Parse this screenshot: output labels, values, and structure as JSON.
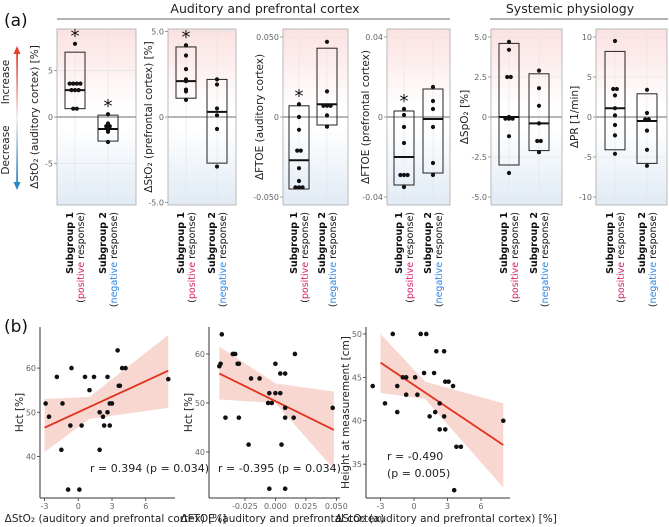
{
  "figure": {
    "panel_a_label": "(a)",
    "panel_b_label": "(b)",
    "group_headers": [
      "Auditory and prefrontal cortex",
      "Systemic physiology"
    ],
    "arrow_labels": {
      "increase": "Increase",
      "decrease": "Decrease"
    },
    "colors": {
      "positive": "#d6246e",
      "negative": "#2f86e8",
      "fit_line": "#e2321e",
      "ci_band": "#f6c9c1",
      "increase": "#e3402f",
      "decrease": "#2b86c5"
    }
  },
  "chart_data": [
    {
      "type": "box",
      "ylabel": "ΔStO₂ (auditory cortex) [%]",
      "ylim": [
        -9.5,
        9.5
      ],
      "yticks": [
        5,
        0,
        -5
      ],
      "ytick_labels": [
        "5",
        "0",
        "-5"
      ],
      "groups": [
        {
          "category": "Subgroup 1",
          "prefix": "(",
          "response_word": "positive",
          "response_rest": " response)",
          "box": [
            0.9,
            7.0
          ],
          "median": 2.9,
          "points": [
            7.9,
            3.6,
            3.6,
            3.6,
            3.6,
            2.9,
            2.9,
            2.9,
            0.9,
            0.9
          ],
          "significant": true,
          "star": "*"
        },
        {
          "category": "Subgroup 2",
          "prefix": "(",
          "response_word": "negative",
          "response_rest": " response)",
          "box": [
            -2.6,
            0.2
          ],
          "median": -1.3,
          "points": [
            0.3,
            -0.7,
            -1.0,
            -1.0,
            -1.3,
            -1.4,
            -1.6,
            -2.7
          ],
          "significant": true,
          "star": "*"
        }
      ]
    },
    {
      "type": "box",
      "ylabel": "ΔStO₂ (prefrontal cortex) [%]",
      "ylim": [
        -5.15,
        5.15
      ],
      "yticks": [
        5,
        0,
        -5
      ],
      "ytick_labels": [
        "5.0",
        "0",
        "-5.0"
      ],
      "groups": [
        {
          "category": "Subgroup 1",
          "prefix": "(",
          "response_word": "positive",
          "response_rest": " response)",
          "box": [
            1.1,
            4.1
          ],
          "median": 2.1,
          "points": [
            4.2,
            3.6,
            2.8,
            2.2,
            2.1,
            1.6,
            1.5,
            1.0
          ],
          "significant": true,
          "star": "*"
        },
        {
          "category": "Subgroup 2",
          "prefix": "(",
          "response_word": "negative",
          "response_rest": " response)",
          "box": [
            -2.7,
            2.2
          ],
          "median": 0.3,
          "points": [
            2.2,
            1.9,
            0.5,
            0.1,
            -0.7,
            -2.9
          ],
          "significant": false
        }
      ]
    },
    {
      "type": "box",
      "ylabel": "ΔFTOE (auditory cortex)",
      "ylim": [
        -0.055,
        0.055
      ],
      "yticks": [
        0.05,
        0,
        -0.05
      ],
      "ytick_labels": [
        "0.050",
        "0",
        "-0.050"
      ],
      "groups": [
        {
          "category": "Subgroup 1",
          "prefix": "(",
          "response_word": "positive",
          "response_rest": " response)",
          "box": [
            -0.045,
            0.007
          ],
          "median": -0.027,
          "points": [
            0.008,
            0.0,
            -0.008,
            -0.021,
            -0.021,
            -0.032,
            -0.04,
            -0.044,
            -0.044,
            -0.044
          ],
          "significant": true,
          "star": "*"
        },
        {
          "category": "Subgroup 2",
          "prefix": "(",
          "response_word": "negative",
          "response_rest": " response)",
          "box": [
            -0.005,
            0.043
          ],
          "median": 0.008,
          "points": [
            0.047,
            0.016,
            0.007,
            0.007,
            0.007,
            0.001,
            -0.006
          ],
          "significant": false
        }
      ]
    },
    {
      "type": "box",
      "ylabel": "ΔFTOE (prefrontal cortex)",
      "ylim": [
        -0.044,
        0.044
      ],
      "yticks": [
        0.04,
        0,
        -0.04
      ],
      "ytick_labels": [
        "0.04",
        "0",
        "-0.04"
      ],
      "groups": [
        {
          "category": "Subgroup 1",
          "prefix": "(",
          "response_word": "positive",
          "response_rest": " response)",
          "box": [
            -0.034,
            0.003
          ],
          "median": -0.02,
          "points": [
            0.004,
            0.001,
            -0.005,
            -0.013,
            -0.029,
            -0.029,
            -0.029,
            -0.035
          ],
          "significant": true,
          "star": "*"
        },
        {
          "category": "Subgroup 2",
          "prefix": "(",
          "response_word": "negative",
          "response_rest": " response)",
          "box": [
            -0.028,
            0.014
          ],
          "median": -0.001,
          "points": [
            0.015,
            0.008,
            0.004,
            -0.005,
            -0.023,
            -0.029
          ],
          "significant": false
        }
      ]
    },
    {
      "type": "box",
      "ylabel": "ΔSpO₂ [%]",
      "ylim": [
        -5.5,
        5.5
      ],
      "yticks": [
        5,
        2.5,
        0,
        -2.5,
        -5
      ],
      "ytick_labels": [
        "5.0",
        "2.5",
        "0",
        "-2.5",
        "-5.0"
      ],
      "groups": [
        {
          "category": "Subgroup 1",
          "prefix": "(",
          "response_word": "positive",
          "response_rest": " response)",
          "box": [
            -3.0,
            4.6
          ],
          "median": 0.0,
          "points": [
            4.7,
            4.2,
            2.5,
            2.5,
            0.0,
            -0.1,
            -0.1,
            -0.1,
            -1.2,
            -3.5
          ],
          "significant": false
        },
        {
          "category": "Subgroup 2",
          "prefix": "(",
          "response_word": "negative",
          "response_rest": " response)",
          "box": [
            -2.1,
            2.7
          ],
          "median": -0.4,
          "points": [
            2.9,
            1.8,
            0.7,
            -0.4,
            -1.5,
            -1.5,
            -2.2
          ],
          "significant": false
        }
      ]
    },
    {
      "type": "box",
      "ylabel": "ΔPR [1/min]",
      "ylim": [
        -11,
        11
      ],
      "yticks": [
        10,
        5,
        0,
        -5,
        -10
      ],
      "ytick_labels": [
        "10",
        "5",
        "0",
        "-5",
        "-10"
      ],
      "groups": [
        {
          "category": "Subgroup 1",
          "prefix": "(",
          "response_word": "positive",
          "response_rest": " response)",
          "box": [
            -4.1,
            8.2
          ],
          "median": 1.1,
          "points": [
            9.5,
            3.5,
            3.5,
            2.7,
            1.1,
            0.2,
            -1.0,
            -2.3,
            -4.6
          ],
          "significant": false
        },
        {
          "category": "Subgroup 2",
          "prefix": "(",
          "response_word": "negative",
          "response_rest": " response)",
          "box": [
            -5.8,
            2.9
          ],
          "median": -0.5,
          "points": [
            3.4,
            0.5,
            -0.3,
            -0.3,
            -1.7,
            -4.1,
            -6.1
          ],
          "significant": false
        }
      ]
    },
    {
      "type": "scatter",
      "xlabel": "ΔStO₂ (auditory and prefrontal cortex) [%]",
      "ylabel": "Hct [%]",
      "xlim": [
        -3.4,
        8.6
      ],
      "ylim": [
        30.6,
        69.3
      ],
      "xticks": [
        -3,
        0,
        3,
        6
      ],
      "xtick_labels": [
        "-3",
        "0",
        "3",
        "6"
      ],
      "yticks": [
        40,
        50,
        60
      ],
      "ytick_labels": [
        "40",
        "50",
        "60"
      ],
      "points": [
        [
          -2.9,
          52
        ],
        [
          -2.6,
          49
        ],
        [
          -1.9,
          58
        ],
        [
          -1.4,
          52
        ],
        [
          -1.5,
          41.5
        ],
        [
          -0.9,
          32.5
        ],
        [
          -0.7,
          47
        ],
        [
          -0.6,
          60
        ],
        [
          0.1,
          32.5
        ],
        [
          0.3,
          47
        ],
        [
          0.6,
          58
        ],
        [
          1.0,
          55
        ],
        [
          1.4,
          58
        ],
        [
          1.9,
          50
        ],
        [
          1.9,
          41.5
        ],
        [
          2.2,
          49
        ],
        [
          2.3,
          47
        ],
        [
          2.6,
          50
        ],
        [
          2.6,
          58
        ],
        [
          2.8,
          52
        ],
        [
          2.8,
          47
        ],
        [
          3.0,
          52
        ],
        [
          3.5,
          64
        ],
        [
          3.6,
          56
        ],
        [
          3.7,
          56
        ],
        [
          3.9,
          60
        ],
        [
          4.2,
          60
        ],
        [
          8.0,
          57.5
        ]
      ],
      "fit": [
        [
          -3,
          46.5
        ],
        [
          8,
          59.4
        ]
      ],
      "ci_upper": [
        [
          -3,
          53
        ],
        [
          1,
          53.5
        ],
        [
          8,
          67.5
        ]
      ],
      "ci_lower": [
        [
          -3,
          41
        ],
        [
          1,
          48.5
        ],
        [
          8,
          51
        ]
      ],
      "annotation": [
        "r = 0.394 (p = 0.034)"
      ]
    },
    {
      "type": "scatter",
      "xlabel": "ΔFTOE (auditory and prefrontal cortex)",
      "ylabel": "Hct [%]",
      "xlim": [
        -0.0545,
        0.053
      ],
      "ylim": [
        30.6,
        65.5
      ],
      "xticks": [
        -0.025,
        0,
        0.025,
        0.05
      ],
      "xtick_labels": [
        "-0.025",
        "0.000",
        "0.025",
        "0.050"
      ],
      "yticks": [
        40,
        50,
        60
      ],
      "ytick_labels": [
        "40",
        "50",
        "60"
      ],
      "points": [
        [
          -0.046,
          57.5
        ],
        [
          -0.045,
          58
        ],
        [
          -0.044,
          64
        ],
        [
          -0.041,
          47
        ],
        [
          -0.035,
          60
        ],
        [
          -0.033,
          60
        ],
        [
          -0.031,
          58
        ],
        [
          -0.03,
          58
        ],
        [
          -0.03,
          47
        ],
        [
          -0.022,
          41.5
        ],
        [
          -0.02,
          55
        ],
        [
          -0.013,
          55
        ],
        [
          -0.006,
          50
        ],
        [
          -0.005,
          52
        ],
        [
          -0.005,
          32.5
        ],
        [
          -0.003,
          50
        ],
        [
          0.0,
          58
        ],
        [
          0.0,
          52
        ],
        [
          0.004,
          52
        ],
        [
          0.004,
          56
        ],
        [
          0.005,
          41.5
        ],
        [
          0.008,
          49
        ],
        [
          0.008,
          47
        ],
        [
          0.008,
          56
        ],
        [
          0.008,
          32.5
        ],
        [
          0.015,
          47
        ],
        [
          0.016,
          60
        ],
        [
          0.047,
          49
        ]
      ],
      "fit": [
        [
          -0.046,
          56
        ],
        [
          0.048,
          44.5
        ]
      ],
      "ci_upper": [
        [
          -0.046,
          61.5
        ],
        [
          0.0,
          54
        ],
        [
          0.048,
          52.3
        ]
      ],
      "ci_lower": [
        [
          -0.046,
          50.7
        ],
        [
          0.0,
          50
        ],
        [
          0.048,
          36.5
        ]
      ],
      "annotation": [
        "r = -0.395 (p = 0.034)"
      ]
    },
    {
      "type": "scatter",
      "xlabel": "ΔStO₂ (auditory and prefrontal cortex) [%]",
      "ylabel": "Height at measurement [cm]",
      "xlim": [
        -4.3,
        8.6
      ],
      "ylim": [
        31.1,
        50.8
      ],
      "xticks": [
        -3,
        0,
        3,
        6
      ],
      "xtick_labels": [
        "-3",
        "0",
        "3",
        "6"
      ],
      "yticks": [
        35,
        40,
        45,
        50
      ],
      "ytick_labels": [
        "35",
        "40",
        "45",
        "50"
      ],
      "points": [
        [
          -3.7,
          44
        ],
        [
          -2.6,
          42
        ],
        [
          -1.9,
          50
        ],
        [
          -1.5,
          44
        ],
        [
          -1.5,
          41
        ],
        [
          -1.0,
          45
        ],
        [
          -0.7,
          45
        ],
        [
          -0.7,
          43
        ],
        [
          0.1,
          45
        ],
        [
          0.3,
          43
        ],
        [
          0.6,
          50
        ],
        [
          0.9,
          45.5
        ],
        [
          1.1,
          50
        ],
        [
          1.4,
          40.5
        ],
        [
          1.8,
          45.5
        ],
        [
          2.0,
          48
        ],
        [
          1.9,
          41
        ],
        [
          2.3,
          42
        ],
        [
          2.3,
          39
        ],
        [
          2.7,
          48
        ],
        [
          2.7,
          40.5
        ],
        [
          2.8,
          44.5
        ],
        [
          2.8,
          39
        ],
        [
          3.1,
          44.5
        ],
        [
          3.5,
          44
        ],
        [
          3.6,
          32
        ],
        [
          3.8,
          37
        ],
        [
          4.2,
          37
        ],
        [
          8.0,
          40
        ]
      ],
      "fit": [
        [
          -3,
          46.7
        ],
        [
          8,
          37.2
        ]
      ],
      "ci_upper": [
        [
          -3,
          50
        ],
        [
          1,
          44.5
        ],
        [
          8,
          42
        ]
      ],
      "ci_lower": [
        [
          -3,
          43.2
        ],
        [
          1,
          42.5
        ],
        [
          8,
          32.3
        ]
      ],
      "annotation": [
        "r = -0.490",
        "(p = 0.005)"
      ]
    }
  ]
}
